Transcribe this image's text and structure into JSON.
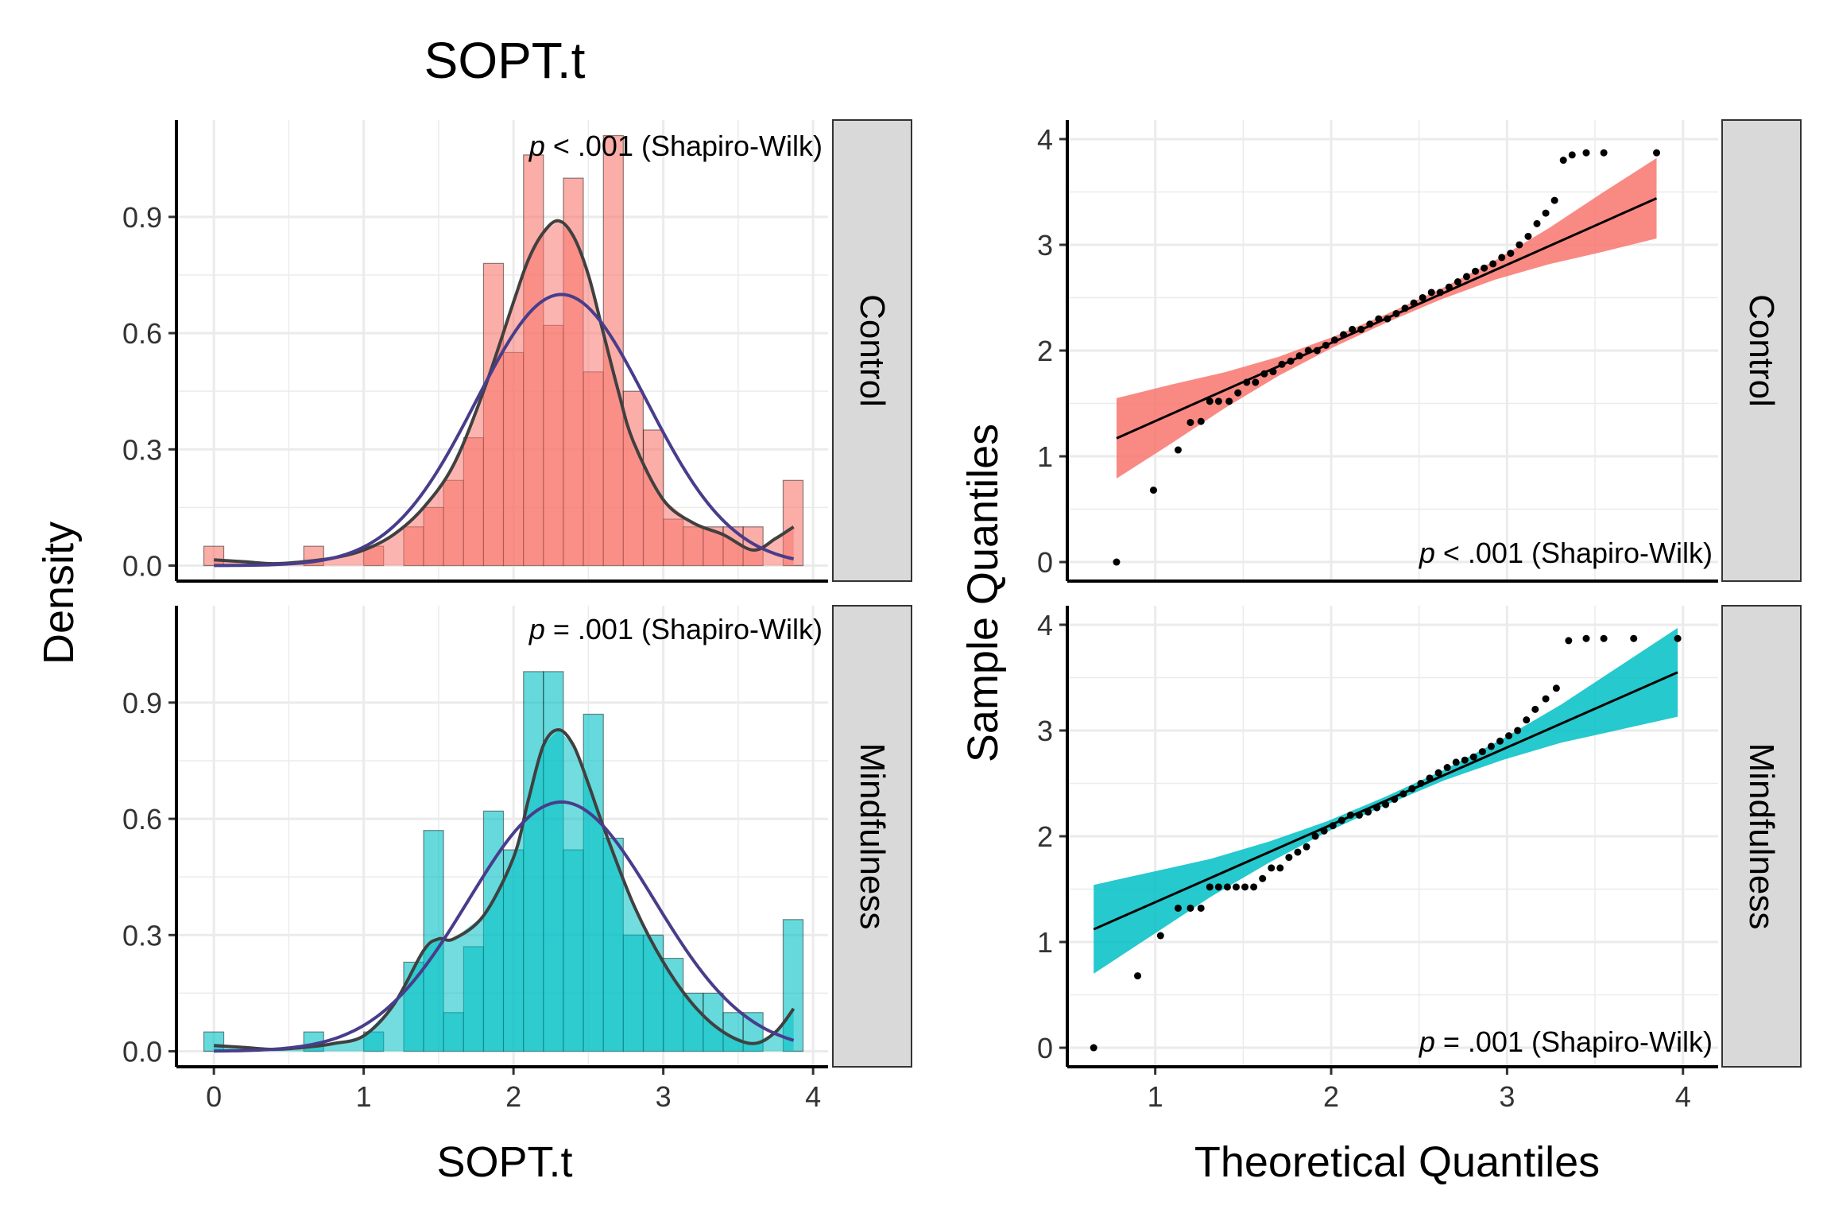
{
  "title": "SOPT.t",
  "colors": {
    "control_fill": "#F8766D",
    "mindfulness_fill": "#00BFC4",
    "kde_line": "#404040",
    "normal_line": "#483D8B",
    "qq_line": "#000000",
    "strip_bg": "#D9D9D9",
    "grid": "#EBEBEB"
  },
  "chart_data": [
    {
      "type": "histogram",
      "panel": "Control",
      "xlabel": "SOPT.t",
      "ylabel": "Density",
      "xlim": [
        -0.25,
        4.1
      ],
      "ylim": [
        -0.04,
        1.15
      ],
      "xticks": [
        "0",
        "1",
        "2",
        "3",
        "4"
      ],
      "yticks": [
        "0.0",
        "0.3",
        "0.6",
        "0.9"
      ],
      "bin_width": 0.133,
      "bin_starts": [
        -0.067,
        0.067,
        0.2,
        0.333,
        0.467,
        0.6,
        0.733,
        0.867,
        1.0,
        1.133,
        1.267,
        1.4,
        1.533,
        1.667,
        1.8,
        1.933,
        2.067,
        2.2,
        2.333,
        2.467,
        2.6,
        2.733,
        2.867,
        3.0,
        3.133,
        3.267,
        3.4,
        3.533,
        3.667,
        3.8
      ],
      "density": [
        0.05,
        0,
        0,
        0,
        0,
        0.05,
        0,
        0,
        0.05,
        0,
        0.1,
        0.15,
        0.22,
        0.33,
        0.78,
        0.55,
        1.06,
        0.62,
        1.0,
        0.5,
        1.11,
        0.45,
        0.35,
        0.12,
        0.1,
        0.1,
        0.1,
        0.1,
        0,
        0.22
      ],
      "kde": {
        "x": [
          0.0,
          0.2,
          0.4,
          0.6,
          0.8,
          1.0,
          1.2,
          1.4,
          1.6,
          1.8,
          2.0,
          2.1,
          2.2,
          2.3,
          2.4,
          2.5,
          2.6,
          2.7,
          2.8,
          3.0,
          3.2,
          3.4,
          3.6,
          3.75,
          3.87
        ],
        "y": [
          0.015,
          0.01,
          0.005,
          0.01,
          0.02,
          0.04,
          0.08,
          0.15,
          0.26,
          0.45,
          0.68,
          0.79,
          0.86,
          0.89,
          0.85,
          0.75,
          0.6,
          0.45,
          0.32,
          0.17,
          0.11,
          0.08,
          0.04,
          0.07,
          0.1
        ]
      },
      "normal": {
        "mean": 2.32,
        "sd": 0.57
      },
      "annotation": {
        "p": "p",
        "rest": " < .001 (Shapiro-Wilk)"
      }
    },
    {
      "type": "histogram",
      "panel": "Mindfulness",
      "xlabel": "SOPT.t",
      "ylabel": "Density",
      "xlim": [
        -0.25,
        4.1
      ],
      "ylim": [
        -0.04,
        1.15
      ],
      "xticks": [
        "0",
        "1",
        "2",
        "3",
        "4"
      ],
      "yticks": [
        "0.0",
        "0.3",
        "0.6",
        "0.9"
      ],
      "bin_width": 0.133,
      "bin_starts": [
        -0.067,
        0.067,
        0.2,
        0.333,
        0.467,
        0.6,
        0.733,
        0.867,
        1.0,
        1.133,
        1.267,
        1.4,
        1.533,
        1.667,
        1.8,
        1.933,
        2.067,
        2.2,
        2.333,
        2.467,
        2.6,
        2.733,
        2.867,
        3.0,
        3.133,
        3.267,
        3.4,
        3.533,
        3.667,
        3.8
      ],
      "density": [
        0.05,
        0,
        0,
        0,
        0,
        0.05,
        0,
        0,
        0.05,
        0,
        0.23,
        0.57,
        0.1,
        0.27,
        0.62,
        0.52,
        0.98,
        0.98,
        0.52,
        0.87,
        0.55,
        0.3,
        0.3,
        0.24,
        0.15,
        0.15,
        0.1,
        0.1,
        0,
        0.34
      ],
      "kde": {
        "x": [
          0.0,
          0.2,
          0.4,
          0.6,
          0.8,
          1.0,
          1.2,
          1.4,
          1.5,
          1.6,
          1.8,
          2.0,
          2.1,
          2.2,
          2.3,
          2.4,
          2.5,
          2.6,
          2.8,
          3.0,
          3.2,
          3.4,
          3.6,
          3.75,
          3.87
        ],
        "y": [
          0.015,
          0.01,
          0.005,
          0.01,
          0.02,
          0.04,
          0.12,
          0.26,
          0.29,
          0.29,
          0.35,
          0.5,
          0.65,
          0.79,
          0.83,
          0.79,
          0.69,
          0.58,
          0.38,
          0.23,
          0.12,
          0.05,
          0.02,
          0.05,
          0.11
        ]
      },
      "normal": {
        "mean": 2.32,
        "sd": 0.62
      },
      "annotation": {
        "p": "p",
        "rest": " = .001 (Shapiro-Wilk)"
      }
    },
    {
      "type": "scatter",
      "panel": "Control",
      "xlabel": "Theoretical Quantiles",
      "ylabel": "Sample Quantiles",
      "xlim": [
        0.5,
        4.2
      ],
      "ylim": [
        -0.18,
        4.18
      ],
      "xticks": [
        "1",
        "2",
        "3",
        "4"
      ],
      "yticks": [
        "0",
        "1",
        "2",
        "3",
        "4"
      ],
      "line": {
        "x0": 0.78,
        "y0": 1.17,
        "x1": 3.85,
        "y1": 3.44
      },
      "band_halfwidth": [
        0.38,
        0.28,
        0.17,
        0.09,
        0.05,
        0.04,
        0.05,
        0.09,
        0.17,
        0.28,
        0.38
      ],
      "points_x": [
        0.78,
        0.99,
        1.13,
        1.2,
        1.26,
        1.31,
        1.36,
        1.42,
        1.47,
        1.52,
        1.57,
        1.62,
        1.67,
        1.72,
        1.77,
        1.82,
        1.87,
        1.92,
        1.97,
        2.02,
        2.07,
        2.12,
        2.17,
        2.22,
        2.27,
        2.32,
        2.37,
        2.42,
        2.47,
        2.52,
        2.57,
        2.62,
        2.67,
        2.72,
        2.77,
        2.82,
        2.87,
        2.92,
        2.97,
        3.02,
        3.07,
        3.12,
        3.17,
        3.22,
        3.27,
        3.32,
        3.37,
        3.45,
        3.55,
        3.85
      ],
      "points_y": [
        0.0,
        0.68,
        1.06,
        1.32,
        1.33,
        1.52,
        1.52,
        1.52,
        1.6,
        1.7,
        1.7,
        1.78,
        1.8,
        1.87,
        1.9,
        1.95,
        2.0,
        2.0,
        2.05,
        2.1,
        2.15,
        2.2,
        2.2,
        2.25,
        2.3,
        2.3,
        2.35,
        2.4,
        2.45,
        2.5,
        2.55,
        2.55,
        2.6,
        2.65,
        2.7,
        2.75,
        2.78,
        2.82,
        2.88,
        2.92,
        3.0,
        3.08,
        3.2,
        3.3,
        3.42,
        3.8,
        3.85,
        3.87,
        3.87,
        3.87
      ],
      "annotation": {
        "p": "p",
        "rest": " < .001 (Shapiro-Wilk)"
      }
    },
    {
      "type": "scatter",
      "panel": "Mindfulness",
      "xlabel": "Theoretical Quantiles",
      "ylabel": "Sample Quantiles",
      "xlim": [
        0.5,
        4.2
      ],
      "ylim": [
        -0.18,
        4.18
      ],
      "xticks": [
        "1",
        "2",
        "3",
        "4"
      ],
      "yticks": [
        "0",
        "1",
        "2",
        "3",
        "4"
      ],
      "line": {
        "x0": 0.65,
        "y0": 1.12,
        "x1": 3.97,
        "y1": 3.55
      },
      "band_halfwidth": [
        0.42,
        0.3,
        0.18,
        0.1,
        0.05,
        0.04,
        0.05,
        0.1,
        0.18,
        0.3,
        0.42
      ],
      "points_x": [
        0.65,
        0.9,
        1.03,
        1.13,
        1.2,
        1.26,
        1.31,
        1.36,
        1.41,
        1.46,
        1.51,
        1.56,
        1.61,
        1.66,
        1.71,
        1.76,
        1.81,
        1.86,
        1.91,
        1.96,
        2.01,
        2.06,
        2.11,
        2.16,
        2.21,
        2.26,
        2.31,
        2.36,
        2.41,
        2.46,
        2.51,
        2.56,
        2.61,
        2.66,
        2.71,
        2.76,
        2.81,
        2.86,
        2.91,
        2.96,
        3.01,
        3.06,
        3.11,
        3.16,
        3.22,
        3.28,
        3.35,
        3.45,
        3.55,
        3.72,
        3.97
      ],
      "points_y": [
        0.0,
        0.68,
        1.06,
        1.32,
        1.32,
        1.32,
        1.52,
        1.52,
        1.52,
        1.52,
        1.52,
        1.52,
        1.6,
        1.7,
        1.7,
        1.8,
        1.85,
        1.9,
        2.0,
        2.05,
        2.1,
        2.15,
        2.2,
        2.2,
        2.23,
        2.27,
        2.3,
        2.35,
        2.4,
        2.45,
        2.5,
        2.55,
        2.6,
        2.65,
        2.7,
        2.72,
        2.75,
        2.8,
        2.85,
        2.9,
        2.95,
        3.0,
        3.1,
        3.2,
        3.3,
        3.4,
        3.85,
        3.87,
        3.87,
        3.87,
        3.87
      ],
      "annotation": {
        "p": "p",
        "rest": " = .001 (Shapiro-Wilk)"
      }
    }
  ]
}
